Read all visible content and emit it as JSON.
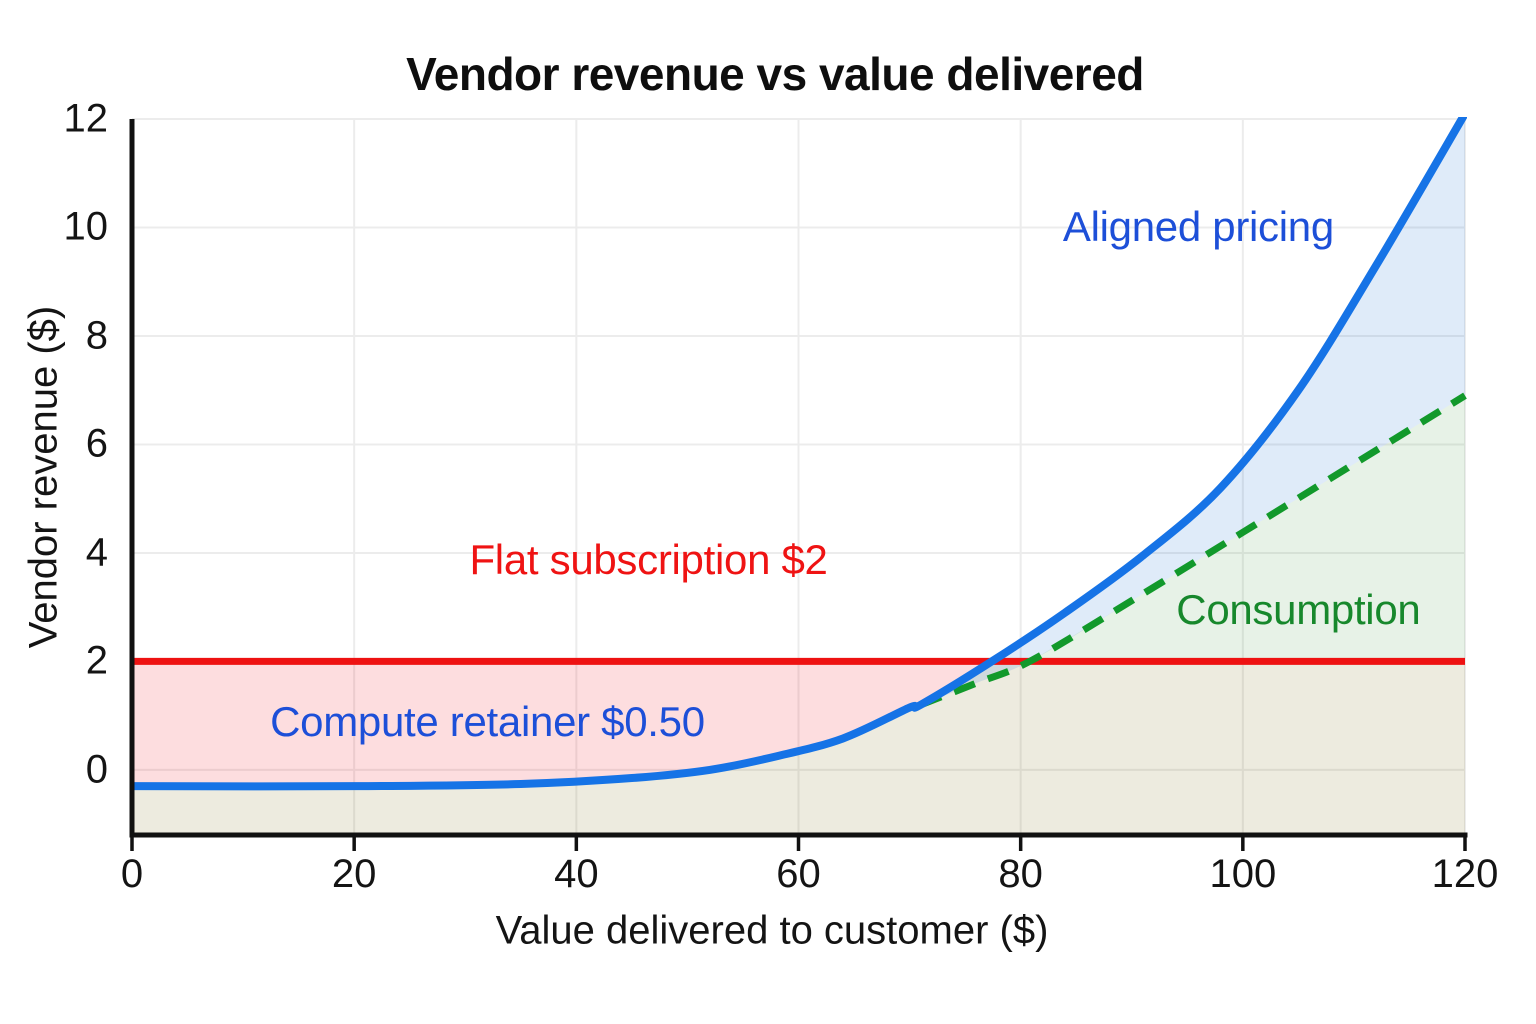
{
  "title": "Vendor revenue vs value delivered",
  "axes": {
    "x": {
      "label": "Value delivered to customer ($)",
      "ticks": [
        0,
        20,
        40,
        60,
        80,
        100,
        120
      ],
      "min": 0,
      "max": 120
    },
    "y": {
      "label": "Vendor revenue ($)",
      "ticks": [
        0,
        2,
        4,
        6,
        8,
        10,
        12
      ],
      "min": -1.2,
      "max": 12
    }
  },
  "chart_data": {
    "type": "line",
    "title": "Vendor revenue vs value delivered",
    "xlabel": "Value delivered to customer ($)",
    "ylabel": "Vendor revenue ($)",
    "xlim": [
      0,
      120
    ],
    "ylim": [
      -1.2,
      12
    ],
    "grid": true,
    "grid_color": "#ececec",
    "spine_color": "#111111",
    "tick_color": "#141414",
    "series": [
      {
        "name": "Aligned pricing",
        "kind": "curve",
        "color": "#1673e6",
        "width": 8,
        "style": "solid",
        "points": [
          [
            0,
            -0.3
          ],
          [
            20,
            -0.3
          ],
          [
            35,
            -0.26
          ],
          [
            45,
            -0.15
          ],
          [
            52,
            0.0
          ],
          [
            58,
            0.25
          ],
          [
            64,
            0.58
          ],
          [
            70,
            1.15
          ],
          [
            71,
            1.2
          ],
          [
            77.4,
            2.0
          ],
          [
            84,
            2.9
          ],
          [
            91,
            3.95
          ],
          [
            98,
            5.2
          ],
          [
            105,
            7.0
          ],
          [
            112,
            9.3
          ],
          [
            120,
            12.1
          ]
        ]
      },
      {
        "name": "Consumption",
        "kind": "curve",
        "color": "#12992b",
        "width": 7,
        "style": "dashed",
        "dash": "22 14",
        "points": [
          [
            71,
            1.2
          ],
          [
            76,
            1.6
          ],
          [
            81,
            2.02
          ],
          [
            90,
            3.12
          ],
          [
            100,
            4.38
          ],
          [
            110,
            5.64
          ],
          [
            120,
            6.9
          ]
        ]
      },
      {
        "name": "Flat subscription",
        "kind": "hline",
        "color": "#ee1212",
        "width": 7,
        "value": 2
      }
    ],
    "fills": {
      "retainer_pink": "rgba(240,15,25,0.14)",
      "below_min_tan": "rgba(125,113,30,0.14)",
      "aligned_blue": "rgba(25,112,210,0.14)",
      "consumption_green": "rgba(34,139,34,0.11)"
    },
    "annotations": [
      {
        "id": "aligned-pricing-label",
        "text": "Aligned pricing",
        "color": "#1d4fd8",
        "x": 96,
        "y": 10
      },
      {
        "id": "flat-subscription-label",
        "text": "Flat subscription $2",
        "color": "#ef1313",
        "x": 46.5,
        "y": 3.87
      },
      {
        "id": "compute-retainer-label",
        "text": "Compute retainer $0.50",
        "color": "#1d4fd8",
        "x": 32,
        "y": 0.88
      },
      {
        "id": "consumption-label",
        "text": "Consumption",
        "color": "#17882c",
        "x": 105,
        "y": 2.95
      }
    ]
  }
}
